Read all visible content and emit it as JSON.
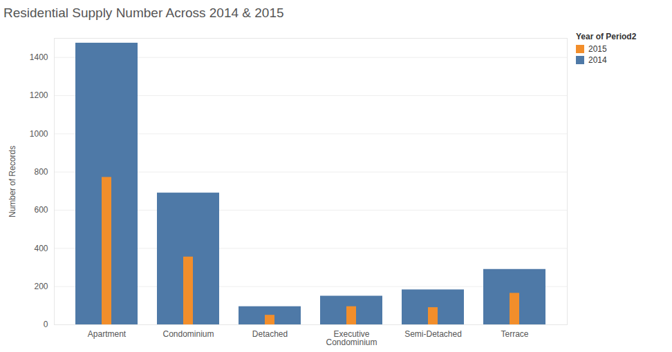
{
  "chart_data": {
    "type": "bar",
    "title": "Residential Supply Number Across 2014 & 2015",
    "y_label": "Number of Records",
    "legend_title": "Year of Period2",
    "categories": [
      "Apartment",
      "Condominium",
      "Detached",
      "Executive Condominium",
      "Semi-Detached",
      "Terrace"
    ],
    "series": [
      {
        "name": "2015",
        "color": "#f28e2b",
        "values": [
          772,
          355,
          50,
          95,
          90,
          165
        ]
      },
      {
        "name": "2014",
        "color": "#4e79a7",
        "values": [
          1475,
          690,
          95,
          150,
          183,
          290
        ]
      }
    ],
    "ylim": [
      0,
      1500
    ],
    "yticks": [
      0,
      200,
      400,
      600,
      800,
      1000,
      1200,
      1400
    ],
    "grid": true,
    "legend": "top-right"
  }
}
